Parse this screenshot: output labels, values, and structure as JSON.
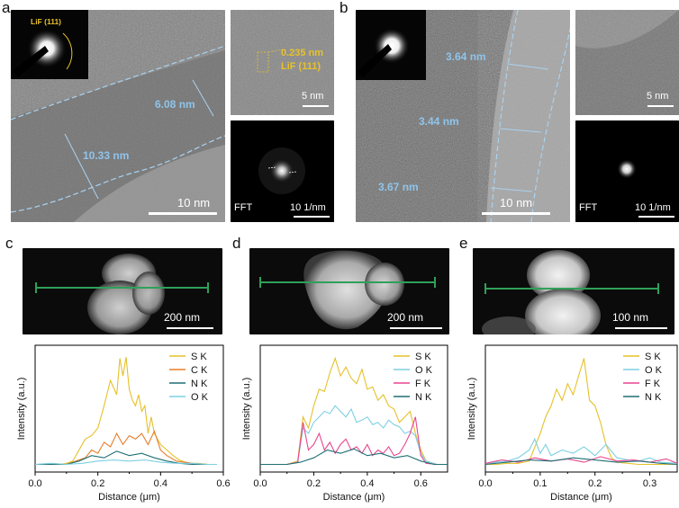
{
  "panel_letters": {
    "a": "a",
    "b": "b",
    "c": "c",
    "d": "d",
    "e": "e"
  },
  "panel_a": {
    "main_scale": "10 nm",
    "saed_label": "LiF (111)",
    "measurements": [
      "6.08 nm",
      "10.33 nm"
    ],
    "hr_scale": "5 nm",
    "d_spacing": "0.235 nm",
    "lattice_label": "LiF (111)",
    "fft_label": "FFT",
    "fft_scale": "10 1/nm"
  },
  "panel_b": {
    "main_scale": "10 nm",
    "measurements": [
      "3.64 nm",
      "3.44 nm",
      "3.67 nm"
    ],
    "hr_scale": "5 nm",
    "fft_label": "FFT",
    "fft_scale": "10 1/nm"
  },
  "haadf": {
    "c_scale": "200 nm",
    "d_scale": "200 nm",
    "e_scale": "100 nm"
  },
  "colors": {
    "S": "#e6c12a",
    "C": "#e87d2c",
    "N": "#1f6f75",
    "O": "#7dd0e3",
    "F": "#e8458f",
    "line": "#2fa05a",
    "meas": "#8fc4ea"
  },
  "chart_data": [
    {
      "type": "line",
      "xlabel": "Distance (μm)",
      "ylabel": "Intensity (a.u.)",
      "xlim": [
        0,
        0.6
      ],
      "xticks": [
        "0.0",
        "0.2",
        "0.4",
        "0.6"
      ],
      "legend": "top-right",
      "series": [
        {
          "name": "S K",
          "color": "#e6c12a",
          "x": [
            0,
            0.02,
            0.04,
            0.06,
            0.08,
            0.1,
            0.12,
            0.14,
            0.16,
            0.18,
            0.2,
            0.22,
            0.24,
            0.26,
            0.27,
            0.28,
            0.29,
            0.3,
            0.31,
            0.32,
            0.33,
            0.34,
            0.35,
            0.36,
            0.37,
            0.38,
            0.4,
            0.42,
            0.44,
            0.46,
            0.48,
            0.5,
            0.52,
            0.55,
            0.58
          ],
          "y": [
            0.02,
            0.02,
            0.02,
            0.03,
            0.02,
            0.03,
            0.05,
            0.15,
            0.25,
            0.28,
            0.35,
            0.55,
            0.78,
            0.65,
            0.98,
            0.82,
            0.99,
            0.7,
            0.6,
            0.55,
            0.65,
            0.5,
            0.55,
            0.3,
            0.45,
            0.3,
            0.2,
            0.15,
            0.1,
            0.06,
            0.04,
            0.03,
            0.03,
            0.02,
            0.02
          ]
        },
        {
          "name": "C K",
          "color": "#e87d2c",
          "x": [
            0,
            0.05,
            0.1,
            0.13,
            0.16,
            0.18,
            0.2,
            0.22,
            0.24,
            0.26,
            0.28,
            0.3,
            0.32,
            0.34,
            0.36,
            0.38,
            0.4,
            0.42,
            0.45,
            0.5,
            0.55,
            0.58
          ],
          "y": [
            0.02,
            0.02,
            0.02,
            0.05,
            0.08,
            0.15,
            0.12,
            0.22,
            0.18,
            0.3,
            0.2,
            0.28,
            0.25,
            0.3,
            0.2,
            0.32,
            0.15,
            0.1,
            0.05,
            0.03,
            0.02,
            0.02
          ]
        },
        {
          "name": "N K",
          "color": "#1f6f75",
          "x": [
            0,
            0.05,
            0.1,
            0.14,
            0.18,
            0.22,
            0.26,
            0.3,
            0.34,
            0.38,
            0.42,
            0.46,
            0.5,
            0.55,
            0.58
          ],
          "y": [
            0.02,
            0.02,
            0.02,
            0.05,
            0.1,
            0.08,
            0.14,
            0.1,
            0.12,
            0.08,
            0.05,
            0.03,
            0.02,
            0.02,
            0.02
          ]
        },
        {
          "name": "O K",
          "color": "#7dd0e3",
          "x": [
            0,
            0.05,
            0.1,
            0.15,
            0.2,
            0.25,
            0.3,
            0.35,
            0.4,
            0.45,
            0.5,
            0.55,
            0.58
          ],
          "y": [
            0.02,
            0.03,
            0.02,
            0.03,
            0.05,
            0.06,
            0.05,
            0.06,
            0.04,
            0.03,
            0.03,
            0.02,
            0.02
          ]
        }
      ]
    },
    {
      "type": "line",
      "xlabel": "Distance (μm)",
      "ylabel": "Intensity (a.u.)",
      "xlim": [
        0,
        0.7
      ],
      "xticks": [
        "0.0",
        "0.2",
        "0.4",
        "0.6"
      ],
      "legend": "top-right",
      "series": [
        {
          "name": "S K",
          "color": "#e6c12a",
          "x": [
            0,
            0.05,
            0.1,
            0.14,
            0.16,
            0.18,
            0.2,
            0.22,
            0.24,
            0.26,
            0.28,
            0.3,
            0.32,
            0.34,
            0.36,
            0.38,
            0.4,
            0.42,
            0.44,
            0.46,
            0.48,
            0.5,
            0.52,
            0.54,
            0.56,
            0.58,
            0.6,
            0.62,
            0.66,
            0.7
          ],
          "y": [
            0.02,
            0.02,
            0.02,
            0.05,
            0.45,
            0.35,
            0.55,
            0.7,
            0.68,
            0.85,
            0.98,
            0.82,
            0.9,
            0.8,
            0.75,
            0.88,
            0.7,
            0.72,
            0.6,
            0.65,
            0.55,
            0.52,
            0.4,
            0.45,
            0.5,
            0.3,
            0.15,
            0.05,
            0.02,
            0.02
          ]
        },
        {
          "name": "O K",
          "color": "#7dd0e3",
          "x": [
            0,
            0.05,
            0.1,
            0.14,
            0.16,
            0.18,
            0.2,
            0.22,
            0.24,
            0.26,
            0.28,
            0.3,
            0.32,
            0.34,
            0.36,
            0.38,
            0.4,
            0.42,
            0.44,
            0.46,
            0.48,
            0.5,
            0.52,
            0.54,
            0.56,
            0.58,
            0.6,
            0.62,
            0.66,
            0.7
          ],
          "y": [
            0.02,
            0.02,
            0.02,
            0.04,
            0.35,
            0.3,
            0.4,
            0.45,
            0.5,
            0.48,
            0.55,
            0.5,
            0.45,
            0.52,
            0.4,
            0.42,
            0.45,
            0.38,
            0.4,
            0.35,
            0.42,
            0.38,
            0.36,
            0.3,
            0.32,
            0.28,
            0.12,
            0.05,
            0.02,
            0.02
          ]
        },
        {
          "name": "F K",
          "color": "#e8458f",
          "x": [
            0,
            0.05,
            0.1,
            0.14,
            0.16,
            0.18,
            0.2,
            0.22,
            0.24,
            0.26,
            0.28,
            0.3,
            0.32,
            0.34,
            0.36,
            0.38,
            0.4,
            0.42,
            0.44,
            0.46,
            0.48,
            0.5,
            0.52,
            0.54,
            0.56,
            0.58,
            0.6,
            0.62,
            0.66,
            0.7
          ],
          "y": [
            0.02,
            0.02,
            0.02,
            0.04,
            0.4,
            0.15,
            0.2,
            0.3,
            0.15,
            0.22,
            0.12,
            0.2,
            0.25,
            0.15,
            0.18,
            0.12,
            0.2,
            0.1,
            0.15,
            0.12,
            0.18,
            0.1,
            0.12,
            0.2,
            0.3,
            0.45,
            0.1,
            0.03,
            0.02,
            0.02
          ]
        },
        {
          "name": "N K",
          "color": "#1f6f75",
          "x": [
            0,
            0.05,
            0.1,
            0.15,
            0.2,
            0.25,
            0.3,
            0.35,
            0.4,
            0.45,
            0.5,
            0.55,
            0.6,
            0.65,
            0.7
          ],
          "y": [
            0.02,
            0.02,
            0.02,
            0.04,
            0.08,
            0.15,
            0.12,
            0.16,
            0.1,
            0.12,
            0.08,
            0.1,
            0.05,
            0.02,
            0.02
          ]
        }
      ]
    },
    {
      "type": "line",
      "xlabel": "Distance (μm)",
      "ylabel": "Intensity (a.u.)",
      "xlim": [
        0,
        0.35
      ],
      "xticks": [
        "0.0",
        "0.1",
        "0.2",
        "0.3"
      ],
      "legend": "top-right",
      "series": [
        {
          "name": "S K",
          "color": "#e6c12a",
          "x": [
            0,
            0.02,
            0.04,
            0.06,
            0.08,
            0.1,
            0.11,
            0.12,
            0.13,
            0.14,
            0.15,
            0.16,
            0.17,
            0.18,
            0.19,
            0.2,
            0.21,
            0.22,
            0.23,
            0.24,
            0.26,
            0.28,
            0.3,
            0.32,
            0.35
          ],
          "y": [
            0.02,
            0.02,
            0.03,
            0.03,
            0.05,
            0.3,
            0.45,
            0.55,
            0.7,
            0.6,
            0.75,
            0.65,
            0.82,
            0.98,
            0.6,
            0.55,
            0.4,
            0.2,
            0.08,
            0.04,
            0.03,
            0.02,
            0.02,
            0.02,
            0.02
          ]
        },
        {
          "name": "O K",
          "color": "#7dd0e3",
          "x": [
            0,
            0.02,
            0.04,
            0.06,
            0.08,
            0.09,
            0.1,
            0.11,
            0.12,
            0.14,
            0.16,
            0.18,
            0.2,
            0.22,
            0.24,
            0.26,
            0.28,
            0.3,
            0.32,
            0.35
          ],
          "y": [
            0.02,
            0.04,
            0.05,
            0.08,
            0.15,
            0.25,
            0.12,
            0.2,
            0.1,
            0.15,
            0.12,
            0.18,
            0.1,
            0.2,
            0.08,
            0.06,
            0.05,
            0.08,
            0.04,
            0.03
          ]
        },
        {
          "name": "F K",
          "color": "#e8458f",
          "x": [
            0,
            0.03,
            0.06,
            0.09,
            0.12,
            0.15,
            0.18,
            0.21,
            0.24,
            0.27,
            0.3,
            0.33,
            0.35
          ],
          "y": [
            0.03,
            0.06,
            0.04,
            0.08,
            0.05,
            0.07,
            0.04,
            0.09,
            0.05,
            0.06,
            0.04,
            0.07,
            0.03
          ]
        },
        {
          "name": "N K",
          "color": "#1f6f75",
          "x": [
            0,
            0.04,
            0.08,
            0.12,
            0.16,
            0.2,
            0.24,
            0.28,
            0.32,
            0.35
          ],
          "y": [
            0.02,
            0.04,
            0.06,
            0.05,
            0.08,
            0.06,
            0.04,
            0.05,
            0.03,
            0.02
          ]
        }
      ]
    }
  ]
}
